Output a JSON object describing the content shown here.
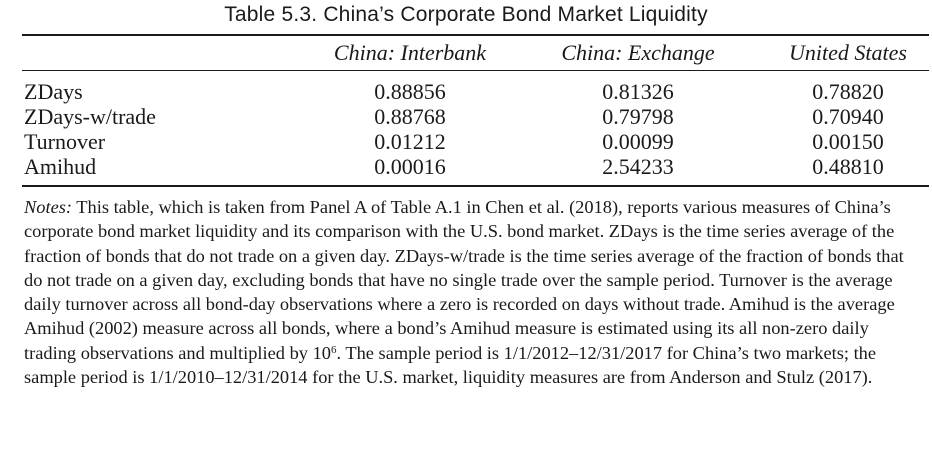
{
  "title": "Table 5.3. China’s Corporate Bond Market Liquidity",
  "columns": [
    "China: Interbank",
    "China: Exchange",
    "United States"
  ],
  "rows": [
    {
      "label": "ZDays",
      "values": [
        "0.88856",
        "0.81326",
        "0.78820"
      ]
    },
    {
      "label": "ZDays-w/trade",
      "values": [
        "0.88768",
        "0.79798",
        "0.70940"
      ]
    },
    {
      "label": "Turnover",
      "values": [
        "0.01212",
        "0.00099",
        "0.00150"
      ]
    },
    {
      "label": "Amihud",
      "values": [
        "0.00016",
        "2.54233",
        "0.48810"
      ]
    }
  ],
  "notes": {
    "lead": "Notes:",
    "text_before_sup": " This table, which is taken from Panel A of Table A.1 in Chen et al. (2018), reports various measures of China’s corporate bond market liquidity and its comparison with the U.S. bond market. ZDays is the time series average of the fraction of bonds that do not trade on a given day. ZDays-w/trade is the time series average of the fraction of bonds that do not trade on a given day, excluding bonds that have no single trade over the sample period. Turnover is the average daily turnover across all bond-day observations where a zero is recorded on days without trade. Amihud is the average Amihud (2002) measure across all bonds, where a bond’s Amihud measure is estimated using its all non-zero daily trading observations and multiplied by 10",
    "superscript": "6",
    "text_after_sup": ". The sample period is 1/1/2012–12/31/2017 for China’s two markets; the sample period is 1/1/2010–12/31/2014 for the U.S. market, liquidity measures are from Anderson and Stulz (2017)."
  }
}
